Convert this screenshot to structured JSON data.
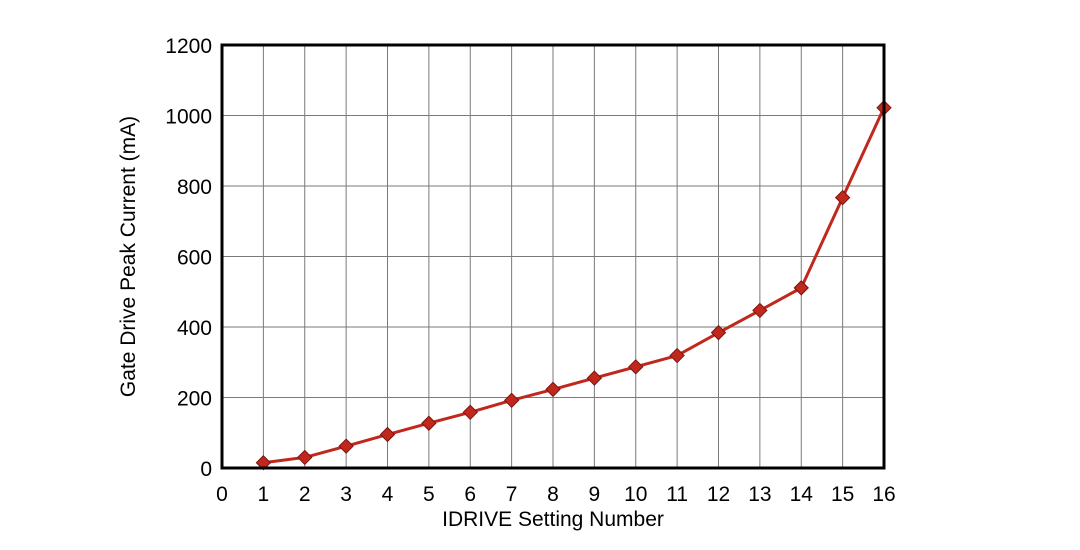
{
  "chart_data": {
    "type": "line",
    "title": "",
    "xlabel": "IDRIVE Setting Number",
    "ylabel": "Gate Drive Peak Current (mA)",
    "xlim": [
      0,
      16
    ],
    "ylim": [
      0,
      1200
    ],
    "x_ticks": [
      0,
      1,
      2,
      3,
      4,
      5,
      6,
      7,
      8,
      9,
      10,
      11,
      12,
      13,
      14,
      15,
      16
    ],
    "y_ticks": [
      0,
      200,
      400,
      600,
      800,
      1000,
      1200
    ],
    "grid": true,
    "legend": "none",
    "series": [
      {
        "color": "#c0281e",
        "marker": "diamond",
        "x": [
          1,
          2,
          3,
          4,
          5,
          6,
          7,
          8,
          9,
          10,
          11,
          12,
          13,
          14,
          15,
          16
        ],
        "y": [
          15,
          30,
          62,
          95,
          127,
          158,
          192,
          223,
          255,
          287,
          319,
          384,
          447,
          511,
          767,
          1022
        ]
      }
    ]
  }
}
